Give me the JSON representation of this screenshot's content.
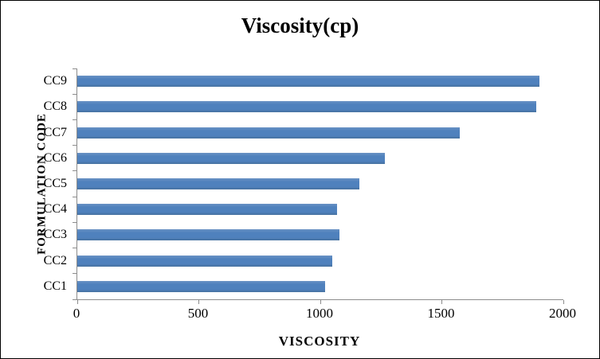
{
  "frame": {
    "background": "#ffffff",
    "border_color": "#000000"
  },
  "chart_data": {
    "type": "bar",
    "orientation": "horizontal",
    "title": "Viscosity(cp)",
    "xlabel": "VISCOSITY",
    "ylabel": "FORMULATION CODE",
    "categories": [
      "CC1",
      "CC2",
      "CC3",
      "CC4",
      "CC5",
      "CC6",
      "CC7",
      "CC8",
      "CC9"
    ],
    "values": [
      1020,
      1050,
      1080,
      1070,
      1160,
      1265,
      1575,
      1890,
      1900
    ],
    "category_order_top_to_bottom": [
      "CC9",
      "CC8",
      "CC7",
      "CC6",
      "CC5",
      "CC4",
      "CC3",
      "CC2",
      "CC1"
    ],
    "xlim": [
      0,
      2000
    ],
    "x_ticks": [
      0,
      500,
      1000,
      1500,
      2000
    ],
    "x_tick_labels": [
      "0",
      "500",
      "1000",
      "1500",
      "2000"
    ],
    "bar_color": "#4F81BD",
    "axis_color": "#8C8C8C",
    "grid": false,
    "legend": "none"
  }
}
